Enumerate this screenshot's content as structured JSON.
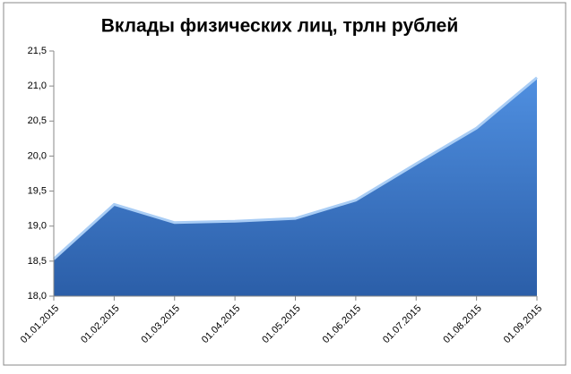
{
  "chart_data": {
    "type": "area",
    "title": "Вклады физических лиц, трлн рублей",
    "categories": [
      "01.01.2015",
      "01.02.2015",
      "01.03.2015",
      "01.04.2015",
      "01.05.2015",
      "01.06.2015",
      "01.07.2015",
      "01.08.2015",
      "01.09.2015"
    ],
    "values": [
      18.53,
      19.31,
      19.05,
      19.07,
      19.11,
      19.37,
      19.89,
      20.4,
      21.12
    ],
    "color": "#3d78c8",
    "ylim": [
      18,
      21.5
    ],
    "yticks": [
      {
        "value": 18,
        "label": "18,0"
      },
      {
        "value": 18.5,
        "label": "18,5"
      },
      {
        "value": 19,
        "label": "19,0"
      },
      {
        "value": 19.5,
        "label": "19,5"
      },
      {
        "value": 20,
        "label": "20,0"
      },
      {
        "value": 20.5,
        "label": "20,5"
      },
      {
        "value": 21,
        "label": "21,0"
      },
      {
        "value": 21.5,
        "label": "21,5"
      }
    ]
  }
}
